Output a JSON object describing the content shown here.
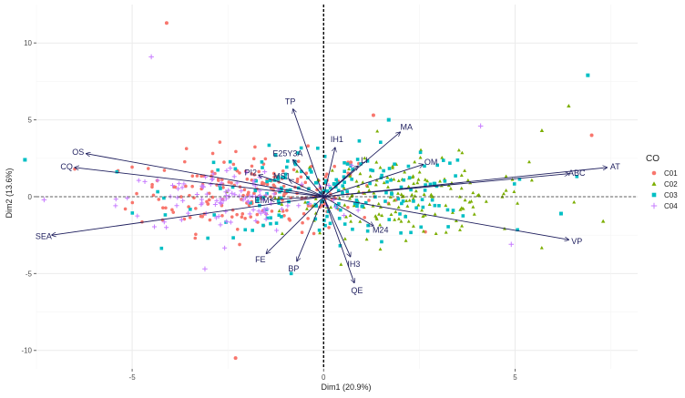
{
  "chart_data": {
    "type": "scatter",
    "title": "",
    "xlabel": "Dim1 (20.9%)",
    "ylabel": "Dim2 (13.6%)",
    "xlim": [
      -7.5,
      8.2
    ],
    "ylim": [
      -11.2,
      12.5
    ],
    "x_ticks": [
      -5,
      0,
      5
    ],
    "y_ticks": [
      10,
      5,
      0,
      -5,
      -10
    ],
    "grid": true,
    "reference_lines": {
      "x": 0,
      "y": 0,
      "style": "dashed"
    },
    "legend": {
      "title": "CO",
      "position": "right",
      "entries": [
        {
          "name": "C01",
          "marker": "circle",
          "color": "#F8766D"
        },
        {
          "name": "C02",
          "marker": "triangle",
          "color": "#7CAE00"
        },
        {
          "name": "C03",
          "marker": "square",
          "color": "#00BFC4"
        },
        {
          "name": "C04",
          "marker": "plus",
          "color": "#C77CFF"
        }
      ]
    },
    "variables": [
      {
        "name": "AT",
        "x": 7.4,
        "y": 1.9
      },
      {
        "name": "ABC",
        "x": 6.4,
        "y": 1.5
      },
      {
        "name": "VP",
        "x": 6.4,
        "y": -2.8
      },
      {
        "name": "OS",
        "x": -6.2,
        "y": 2.8
      },
      {
        "name": "CQ",
        "x": -6.5,
        "y": 1.9
      },
      {
        "name": "SEA",
        "x": -7.1,
        "y": -2.5
      },
      {
        "name": "TP",
        "x": -0.8,
        "y": 5.7
      },
      {
        "name": "MA",
        "x": 2.0,
        "y": 4.2
      },
      {
        "name": "IH1",
        "x": 0.3,
        "y": 3.2
      },
      {
        "name": "OM",
        "x": 2.6,
        "y": 2.1
      },
      {
        "name": "E25Y3A",
        "x": -0.8,
        "y": 2.4
      },
      {
        "name": "PI2",
        "x": -1.7,
        "y": 1.4
      },
      {
        "name": "FE",
        "x": -1.5,
        "y": -3.7
      },
      {
        "name": "BP",
        "x": -0.7,
        "y": -4.2
      },
      {
        "name": "IH3",
        "x": 0.7,
        "y": -3.9
      },
      {
        "name": "QE",
        "x": 0.8,
        "y": -5.6
      },
      {
        "name": "M24",
        "x": 1.3,
        "y": -1.9
      },
      {
        "name": "LI",
        "x": 0.9,
        "y": 2.0
      },
      {
        "name": "MS1",
        "x": -0.9,
        "y": 1.1
      },
      {
        "name": "EIM",
        "x": -1.4,
        "y": -0.2
      }
    ],
    "outlier_points": [
      {
        "x": -4.1,
        "y": 11.3,
        "group": "C01"
      },
      {
        "x": -4.5,
        "y": 9.1,
        "group": "C04"
      },
      {
        "x": 6.9,
        "y": 7.9,
        "group": "C03"
      },
      {
        "x": 6.4,
        "y": 5.9,
        "group": "C02"
      },
      {
        "x": 7.0,
        "y": 4.0,
        "group": "C01"
      },
      {
        "x": -7.8,
        "y": 2.4,
        "group": "C03"
      },
      {
        "x": -2.3,
        "y": -10.5,
        "group": "C01"
      },
      {
        "x": -3.1,
        "y": -4.7,
        "group": "C04"
      },
      {
        "x": 4.1,
        "y": 4.6,
        "group": "C04"
      },
      {
        "x": 1.3,
        "y": 5.3,
        "group": "C01"
      },
      {
        "x": 1.7,
        "y": 5.0,
        "group": "C03"
      },
      {
        "x": 7.3,
        "y": -1.6,
        "group": "C02"
      },
      {
        "x": 6.2,
        "y": -1.1,
        "group": "C03"
      },
      {
        "x": 4.9,
        "y": -3.1,
        "group": "C04"
      },
      {
        "x": -7.3,
        "y": -0.2,
        "group": "C04"
      },
      {
        "x": 5.7,
        "y": 4.3,
        "group": "C02"
      }
    ],
    "cloud": {
      "groups": [
        {
          "name": "C01",
          "cx": -1.7,
          "cy": 0.3,
          "sx": 1.6,
          "sy": 1.3,
          "n": 210
        },
        {
          "name": "C02",
          "cx": 2.1,
          "cy": 0.0,
          "sx": 1.6,
          "sy": 1.3,
          "n": 170
        },
        {
          "name": "C03",
          "cx": 0.3,
          "cy": 0.2,
          "sx": 2.0,
          "sy": 1.4,
          "n": 190
        },
        {
          "name": "C04",
          "cx": -2.3,
          "cy": -0.2,
          "sx": 1.5,
          "sy": 1.1,
          "n": 110
        }
      ]
    }
  }
}
